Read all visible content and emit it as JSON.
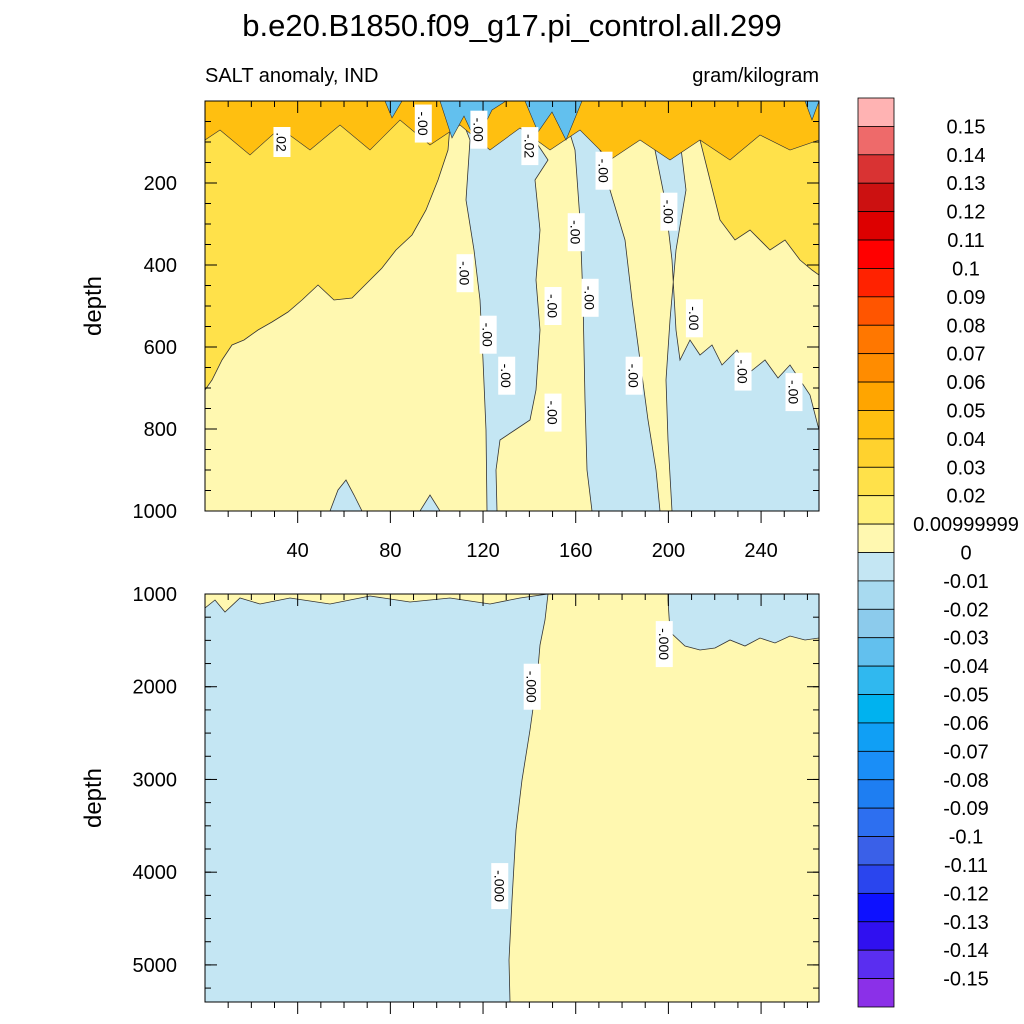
{
  "chart_data": {
    "type": "contour",
    "title": "b.e20.B1850.f09_g17.pi_control.all.299",
    "left_string": "SALT anomaly, IND",
    "right_string": "gram/kilogram",
    "x_ticks": [
      40,
      80,
      120,
      160,
      200,
      240
    ],
    "x_range": [
      0,
      265
    ],
    "panels": [
      {
        "name": "upper",
        "ylabel": "depth",
        "ylim": [
          0,
          1000
        ],
        "yticks": [
          200,
          400,
          600,
          800,
          1000
        ],
        "contour_labels": [
          {
            "text": ".02",
            "x": 33,
            "depth": 100
          },
          {
            "text": "-.00",
            "x": 94,
            "depth": 55
          },
          {
            "text": "-.00",
            "x": 118,
            "depth": 70
          },
          {
            "text": "-.02",
            "x": 140,
            "depth": 110
          },
          {
            "text": "-.00",
            "x": 172,
            "depth": 170
          },
          {
            "text": "-.00",
            "x": 200,
            "depth": 270
          },
          {
            "text": "-.00",
            "x": 160,
            "depth": 320
          },
          {
            "text": "-.00",
            "x": 112,
            "depth": 420
          },
          {
            "text": "-.00",
            "x": 166,
            "depth": 480
          },
          {
            "text": "-.00",
            "x": 150,
            "depth": 500
          },
          {
            "text": "-.00",
            "x": 211,
            "depth": 530
          },
          {
            "text": "-.00",
            "x": 122,
            "depth": 570
          },
          {
            "text": "-.00",
            "x": 130,
            "depth": 670
          },
          {
            "text": "-.00",
            "x": 185,
            "depth": 670
          },
          {
            "text": "-.00",
            "x": 232,
            "depth": 660
          },
          {
            "text": "-.00",
            "x": 254,
            "depth": 710
          },
          {
            "text": "-.00",
            "x": 150,
            "depth": 760
          }
        ]
      },
      {
        "name": "lower",
        "ylabel": "depth",
        "ylim": [
          1000,
          5400
        ],
        "yticks": [
          1000,
          2000,
          3000,
          4000,
          5000
        ],
        "contour_labels": [
          {
            "text": "-.000",
            "x": 198,
            "depth": 1540
          },
          {
            "text": "-.000",
            "x": 141,
            "depth": 2000
          },
          {
            "text": "-.000",
            "x": 127,
            "depth": 4150
          }
        ]
      }
    ],
    "colorbar": {
      "levels": [
        "0.15",
        "0.14",
        "0.13",
        "0.12",
        "0.11",
        "0.1",
        "0.09",
        "0.08",
        "0.07",
        "0.06",
        "0.05",
        "0.04",
        "0.03",
        "0.02",
        "0.00999999",
        "0",
        "-0.01",
        "-0.02",
        "-0.03",
        "-0.04",
        "-0.05",
        "-0.06",
        "-0.07",
        "-0.08",
        "-0.09",
        "-0.1",
        "-0.11",
        "-0.12",
        "-0.13",
        "-0.14",
        "-0.15"
      ],
      "colors": [
        "#ffb3b3",
        "#ee6a6a",
        "#d93333",
        "#cc1111",
        "#dd0000",
        "#ff0000",
        "#ff2200",
        "#ff5500",
        "#ff7700",
        "#ff8c00",
        "#ffa500",
        "#ffbf10",
        "#ffd22e",
        "#ffe14a",
        "#fff07a",
        "#fff8b0",
        "#c4e6f3",
        "#a8daf0",
        "#8ccbec",
        "#62c0ee",
        "#30b8ef",
        "#00b2ef",
        "#109ff5",
        "#1a8ef7",
        "#1e7ef2",
        "#2d6ff0",
        "#3a60e8",
        "#2a45ee",
        "#0d11ff",
        "#3010f0",
        "#5a2ef0",
        "#8b30e8"
      ]
    }
  }
}
